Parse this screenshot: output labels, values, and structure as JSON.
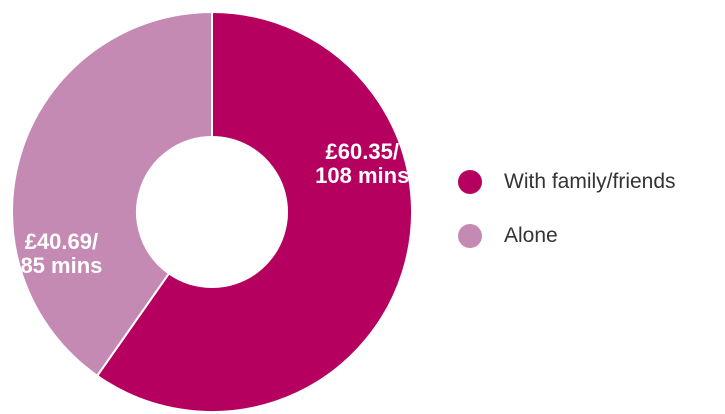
{
  "chart_data": {
    "type": "pie",
    "variant": "donut",
    "slices": [
      {
        "name": "With family/friends",
        "value": 60.35,
        "label_line1": "£60.35/",
        "label_line2": "108 mins",
        "color": "#b5005f"
      },
      {
        "name": "Alone",
        "value": 40.69,
        "label_line1": "£40.69/",
        "label_line2": "85 mins",
        "color": "#c58ab3"
      }
    ],
    "legend_position": "right",
    "start_angle": "top, clockwise"
  },
  "legend": {
    "items": [
      {
        "label": "With family/friends",
        "color": "#b5005f"
      },
      {
        "label": "Alone",
        "color": "#c58ab3"
      }
    ]
  }
}
